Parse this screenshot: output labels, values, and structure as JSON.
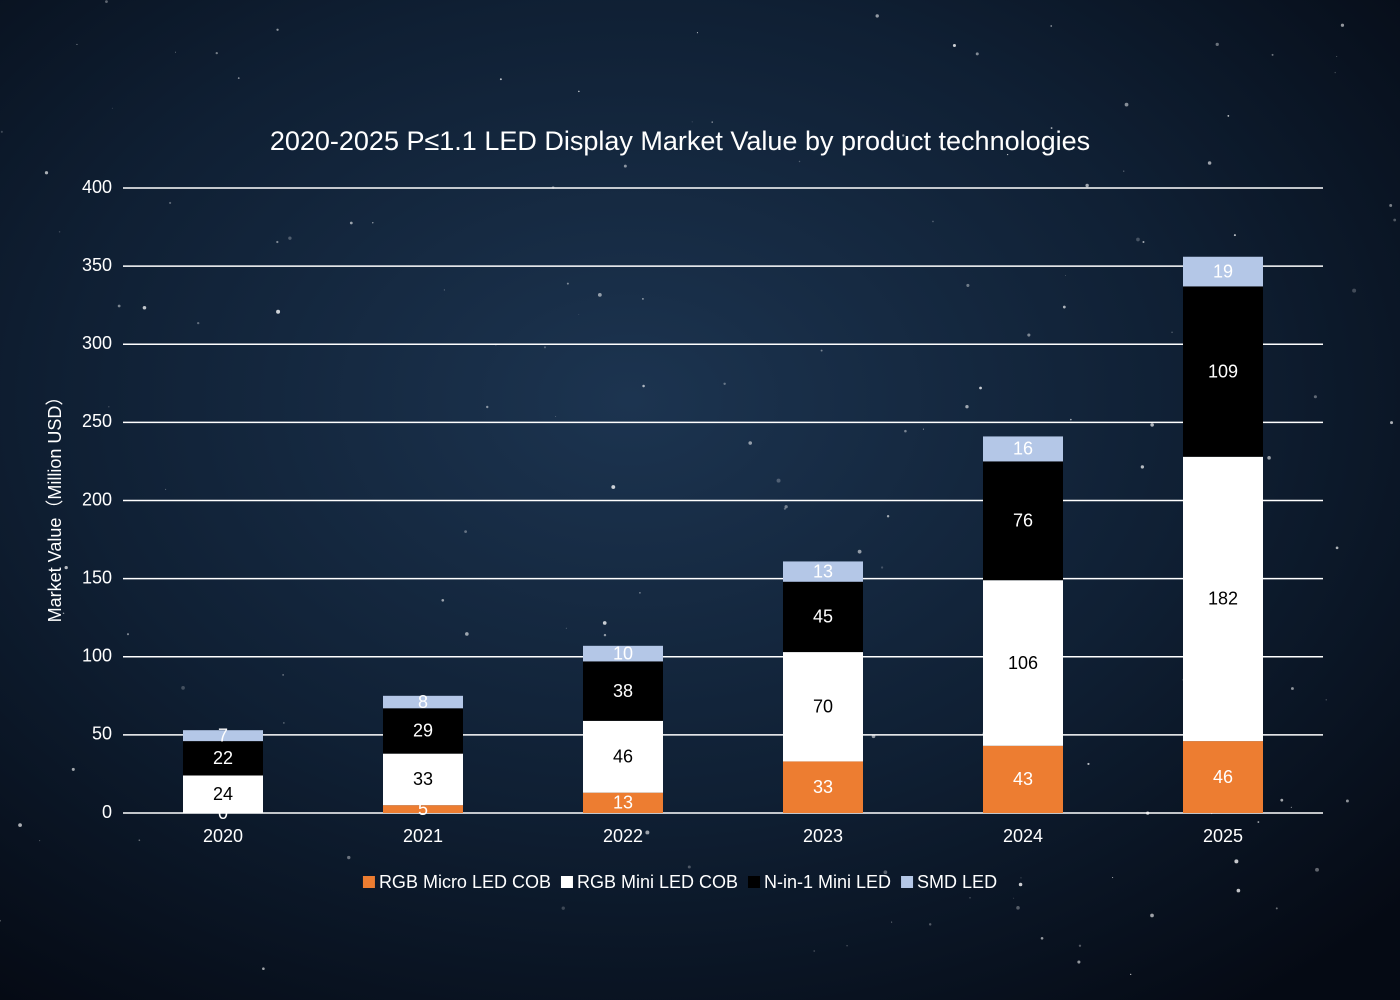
{
  "chart_data": {
    "type": "stacked_bar",
    "title": "2020-2025 P≤1.1 LED Display Market Value by product technologies",
    "y_label": "Market Value（Million USD）",
    "categories": [
      "2020",
      "2021",
      "2022",
      "2023",
      "2024",
      "2025"
    ],
    "series": [
      {
        "name": "RGB Micro LED COB",
        "color": "#ed7d31",
        "values": [
          0,
          5,
          13,
          33,
          43,
          46
        ]
      },
      {
        "name": "RGB Mini LED COB",
        "color": "#ffffff",
        "values": [
          24,
          33,
          46,
          70,
          106,
          182
        ]
      },
      {
        "name": "N-in-1 Mini LED",
        "color": "#000000",
        "values": [
          22,
          29,
          38,
          45,
          76,
          109
        ]
      },
      {
        "name": "SMD LED",
        "color": "#b4c7e7",
        "values": [
          7,
          8,
          10,
          13,
          16,
          19
        ]
      }
    ],
    "ylim": [
      0,
      400
    ],
    "yticks": [
      0,
      50,
      100,
      150,
      200,
      250,
      300,
      350,
      400
    ],
    "grid": true,
    "legend": "bottom"
  }
}
